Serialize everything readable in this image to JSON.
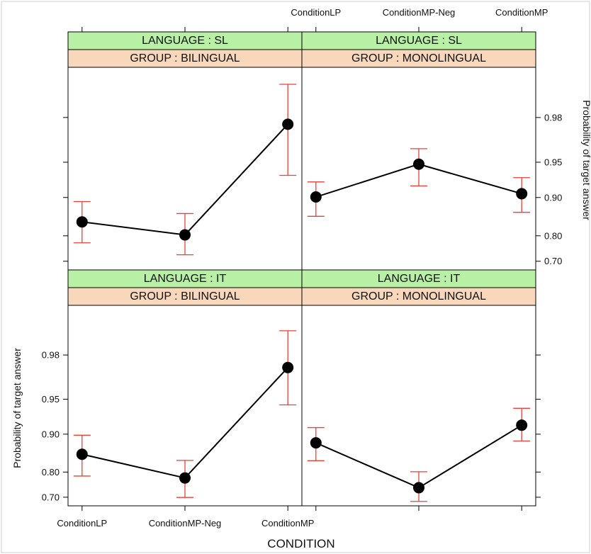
{
  "chart_data": {
    "type": "line",
    "xlabel": "CONDITION",
    "ylabel": "Probability of target answer",
    "categories": [
      "ConditionLP",
      "ConditionMP-Neg",
      "ConditionMP"
    ],
    "yticks": [
      0.7,
      0.8,
      0.9,
      0.95,
      0.98
    ],
    "ytick_labels": [
      "0.70",
      "0.80",
      "0.90",
      "0.95",
      "0.98"
    ],
    "ylim": [
      0.66,
      0.993
    ],
    "panels": [
      {
        "language_strip": "LANGUAGE : SL",
        "group_strip": "GROUP : BILINGUAL",
        "values": [
          0.843,
          0.803,
          0.977
        ],
        "lower": [
          0.775,
          0.728,
          0.935
        ],
        "upper": [
          0.892,
          0.865,
          0.99
        ]
      },
      {
        "language_strip": "LANGUAGE : SL",
        "group_strip": "GROUP : MONOLINGUAL",
        "values": [
          0.901,
          0.948,
          0.907
        ],
        "lower": [
          0.858,
          0.92,
          0.868
        ],
        "upper": [
          0.926,
          0.962,
          0.932
        ]
      },
      {
        "language_strip": "LANGUAGE : IT",
        "group_strip": "GROUP : BILINGUAL",
        "values": [
          0.854,
          0.779,
          0.974
        ],
        "lower": [
          0.786,
          0.699,
          0.944
        ],
        "upper": [
          0.898,
          0.837,
          0.988
        ]
      },
      {
        "language_strip": "LANGUAGE : IT",
        "group_strip": "GROUP : MONOLINGUAL",
        "values": [
          0.882,
          0.741,
          0.916
        ],
        "lower": [
          0.836,
          0.681,
          0.886
        ],
        "upper": [
          0.912,
          0.801,
          0.94
        ]
      }
    ],
    "grid": false,
    "legend": "none"
  }
}
